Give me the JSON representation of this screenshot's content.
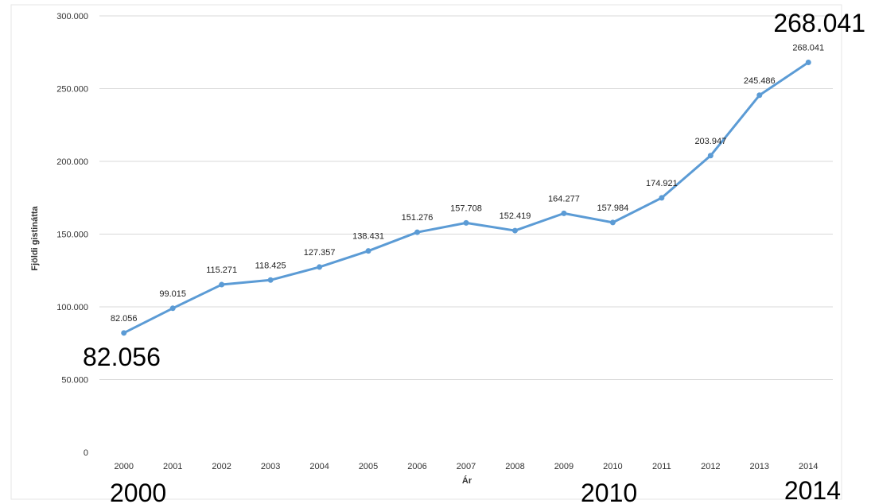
{
  "chart_data": {
    "type": "line",
    "x": [
      "2000",
      "2001",
      "2002",
      "2003",
      "2004",
      "2005",
      "2006",
      "2007",
      "2008",
      "2009",
      "2010",
      "2011",
      "2012",
      "2013",
      "2014"
    ],
    "series": [
      {
        "values": [
          82056,
          99015,
          115271,
          118425,
          127357,
          138431,
          151276,
          157708,
          152419,
          164277,
          157984,
          174921,
          203947,
          245486,
          268041
        ],
        "labels": [
          "82.056",
          "99.015",
          "115.271",
          "118.425",
          "127.357",
          "138.431",
          "151.276",
          "157.708",
          "152.419",
          "164.277",
          "157.984",
          "174.921",
          "203.947",
          "245.486",
          "268.041"
        ],
        "color": "#5b9bd5"
      }
    ],
    "ylim": [
      0,
      300000
    ],
    "yticks": [
      0,
      50000,
      100000,
      150000,
      200000,
      250000,
      300000
    ],
    "ytick_labels": [
      "0",
      "50.000",
      "100.000",
      "150.000",
      "200.000",
      "250.000",
      "300.000"
    ],
    "xlabel": "Ár",
    "ylabel": "Fjöldi gistinátta",
    "grid": "horizontal",
    "gridline_color": "#d9d9d9"
  },
  "annotations": {
    "start_value": "82.056",
    "end_value": "268.041",
    "year_start": "2000",
    "year_mid": "2010",
    "year_end": "2014"
  }
}
